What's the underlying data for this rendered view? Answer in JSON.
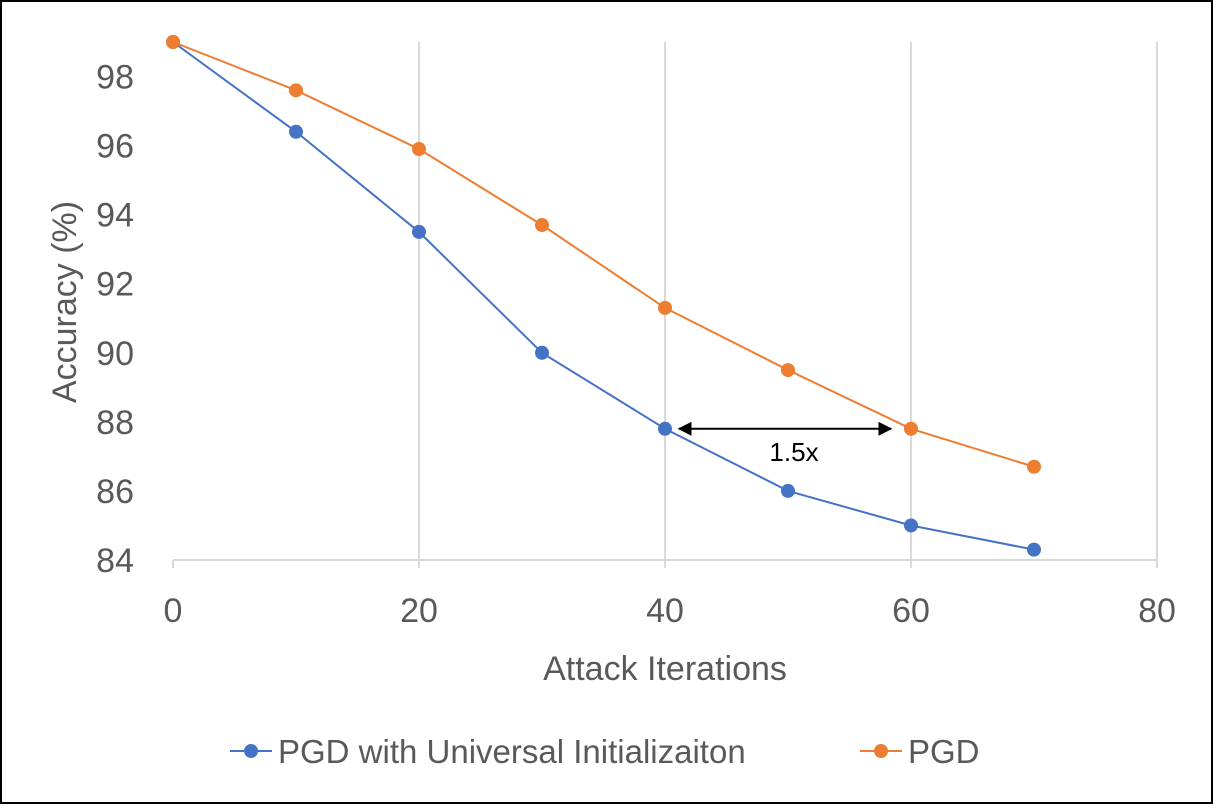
{
  "chart_data": {
    "type": "line",
    "title": "",
    "xlabel": "Attack  Iterations",
    "ylabel": "Accuracy (%)",
    "xlim": [
      0,
      80
    ],
    "ylim": [
      84,
      99
    ],
    "x_ticks": [
      "0",
      "20",
      "40",
      "60",
      "80"
    ],
    "y_ticks": [
      "84",
      "86",
      "88",
      "90",
      "92",
      "94",
      "96",
      "98"
    ],
    "grid": "vertical",
    "legend_position": "bottom",
    "series": [
      {
        "name": "PGD with Universal Initializaiton",
        "color": "#4472c4",
        "x": [
          0,
          10,
          20,
          30,
          40,
          50,
          60,
          70
        ],
        "values": [
          99.0,
          96.4,
          93.5,
          90.0,
          87.8,
          86.0,
          85.0,
          84.3
        ]
      },
      {
        "name": "PGD",
        "color": "#ed7d31",
        "x": [
          0,
          10,
          20,
          30,
          40,
          50,
          60,
          70
        ],
        "values": [
          99.0,
          97.6,
          95.9,
          93.7,
          91.3,
          89.5,
          87.8,
          86.7
        ]
      }
    ],
    "annotations": [
      {
        "text": "1.5x",
        "from_x": 40,
        "to_x": 60,
        "y": 87.8
      }
    ]
  }
}
